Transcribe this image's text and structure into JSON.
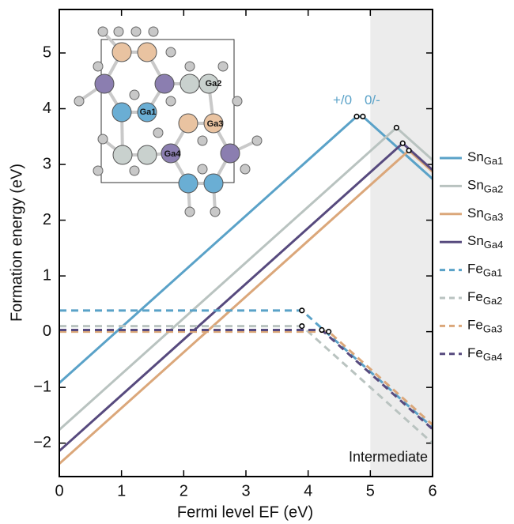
{
  "chart_data": {
    "type": "line",
    "xlabel": "Fermi level EF (eV)",
    "ylabel": "Formation energy (eV)",
    "xlim": [
      0,
      6
    ],
    "ylim": [
      -2.6,
      5.78
    ],
    "xticks": [
      0,
      1,
      2,
      3,
      4,
      5,
      6
    ],
    "yticks": [
      {
        "value": -2,
        "label": "−2"
      },
      {
        "value": -1,
        "label": "−1"
      },
      0,
      1,
      2,
      3,
      4,
      5
    ],
    "shaded_xrange": [
      5,
      6
    ],
    "shaded_label": "Intermediate",
    "transition_labels": [
      "+/0",
      "0/-"
    ],
    "inset_labels": [
      "Ga1",
      "Ga2",
      "Ga3",
      "Ga4"
    ],
    "series": [
      {
        "name": "SnGa1",
        "color": "#5aa2c8",
        "dashed": false,
        "x": [
          0,
          4.78,
          4.88,
          6
        ],
        "values": [
          -0.92,
          3.86,
          3.86,
          2.74
        ]
      },
      {
        "name": "SnGa2",
        "color": "#b9c3c0",
        "dashed": false,
        "x": [
          0,
          5.42,
          6
        ],
        "values": [
          -1.76,
          3.66,
          3.08
        ]
      },
      {
        "name": "SnGa3",
        "color": "#dba77a",
        "dashed": false,
        "x": [
          0,
          5.62,
          6
        ],
        "values": [
          -2.37,
          3.25,
          2.87
        ]
      },
      {
        "name": "SnGa4",
        "color": "#574a7e",
        "dashed": false,
        "x": [
          0,
          5.52,
          6
        ],
        "values": [
          -2.14,
          3.38,
          2.9
        ]
      },
      {
        "name": "FeGa1",
        "color": "#5aa2c8",
        "dashed": true,
        "x": [
          0,
          3.9,
          6
        ],
        "values": [
          0.38,
          0.38,
          -1.72
        ]
      },
      {
        "name": "FeGa2",
        "color": "#b9c3c0",
        "dashed": true,
        "x": [
          0,
          3.9,
          6
        ],
        "values": [
          0.1,
          0.1,
          -2.0
        ]
      },
      {
        "name": "FeGa3",
        "color": "#dba77a",
        "dashed": true,
        "x": [
          0,
          4.33,
          6
        ],
        "values": [
          0.0,
          0.0,
          -1.67
        ]
      },
      {
        "name": "FeGa4",
        "color": "#574a7e",
        "dashed": true,
        "x": [
          0,
          4.22,
          6
        ],
        "values": [
          0.03,
          0.03,
          -1.75
        ]
      }
    ]
  }
}
